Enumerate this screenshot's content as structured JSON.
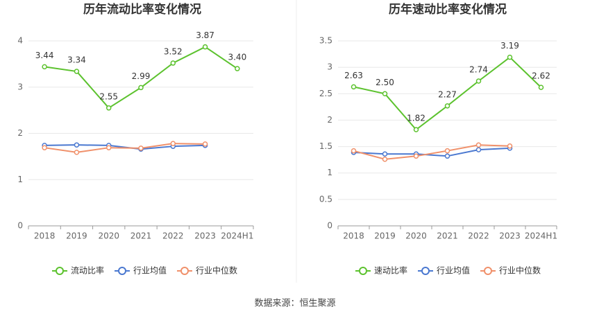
{
  "chart_data": [
    {
      "type": "line",
      "title": "历年流动比率变化情况",
      "categories": [
        "2018",
        "2019",
        "2020",
        "2021",
        "2022",
        "2023",
        "2024H1"
      ],
      "ylim": [
        0,
        4
      ],
      "yticks": [
        0,
        1,
        2,
        3,
        4
      ],
      "grid": true,
      "legend": "bottom",
      "series": [
        {
          "name": "流动比率",
          "color": "#5cc22e",
          "values": [
            3.44,
            3.34,
            2.55,
            2.99,
            3.52,
            3.87,
            3.4
          ],
          "value_labels": [
            "3.44",
            "3.34",
            "2.55",
            "2.99",
            "3.52",
            "3.87",
            "3.40"
          ]
        },
        {
          "name": "行业均值",
          "color": "#4a78d0",
          "values": [
            1.74,
            1.75,
            1.74,
            1.66,
            1.72,
            1.74,
            null
          ]
        },
        {
          "name": "行业中位数",
          "color": "#f0906a",
          "values": [
            1.69,
            1.59,
            1.69,
            1.68,
            1.78,
            1.77,
            null
          ]
        }
      ]
    },
    {
      "type": "line",
      "title": "历年速动比率变化情况",
      "categories": [
        "2018",
        "2019",
        "2020",
        "2021",
        "2022",
        "2023",
        "2024H1"
      ],
      "ylim": [
        0,
        3.5
      ],
      "yticks": [
        0,
        0.5,
        1,
        1.5,
        2,
        2.5,
        3,
        3.5
      ],
      "grid": true,
      "legend": "bottom",
      "series": [
        {
          "name": "速动比率",
          "color": "#5cc22e",
          "values": [
            2.63,
            2.5,
            1.82,
            2.27,
            2.74,
            3.19,
            2.62
          ],
          "value_labels": [
            "2.63",
            "2.50",
            "1.82",
            "2.27",
            "2.74",
            "3.19",
            "2.62"
          ]
        },
        {
          "name": "行业均值",
          "color": "#4a78d0",
          "values": [
            1.39,
            1.36,
            1.36,
            1.32,
            1.44,
            1.47,
            null
          ]
        },
        {
          "name": "行业中位数",
          "color": "#f0906a",
          "values": [
            1.42,
            1.26,
            1.32,
            1.42,
            1.53,
            1.51,
            null
          ]
        }
      ]
    }
  ],
  "source": "数据来源：恒生聚源"
}
